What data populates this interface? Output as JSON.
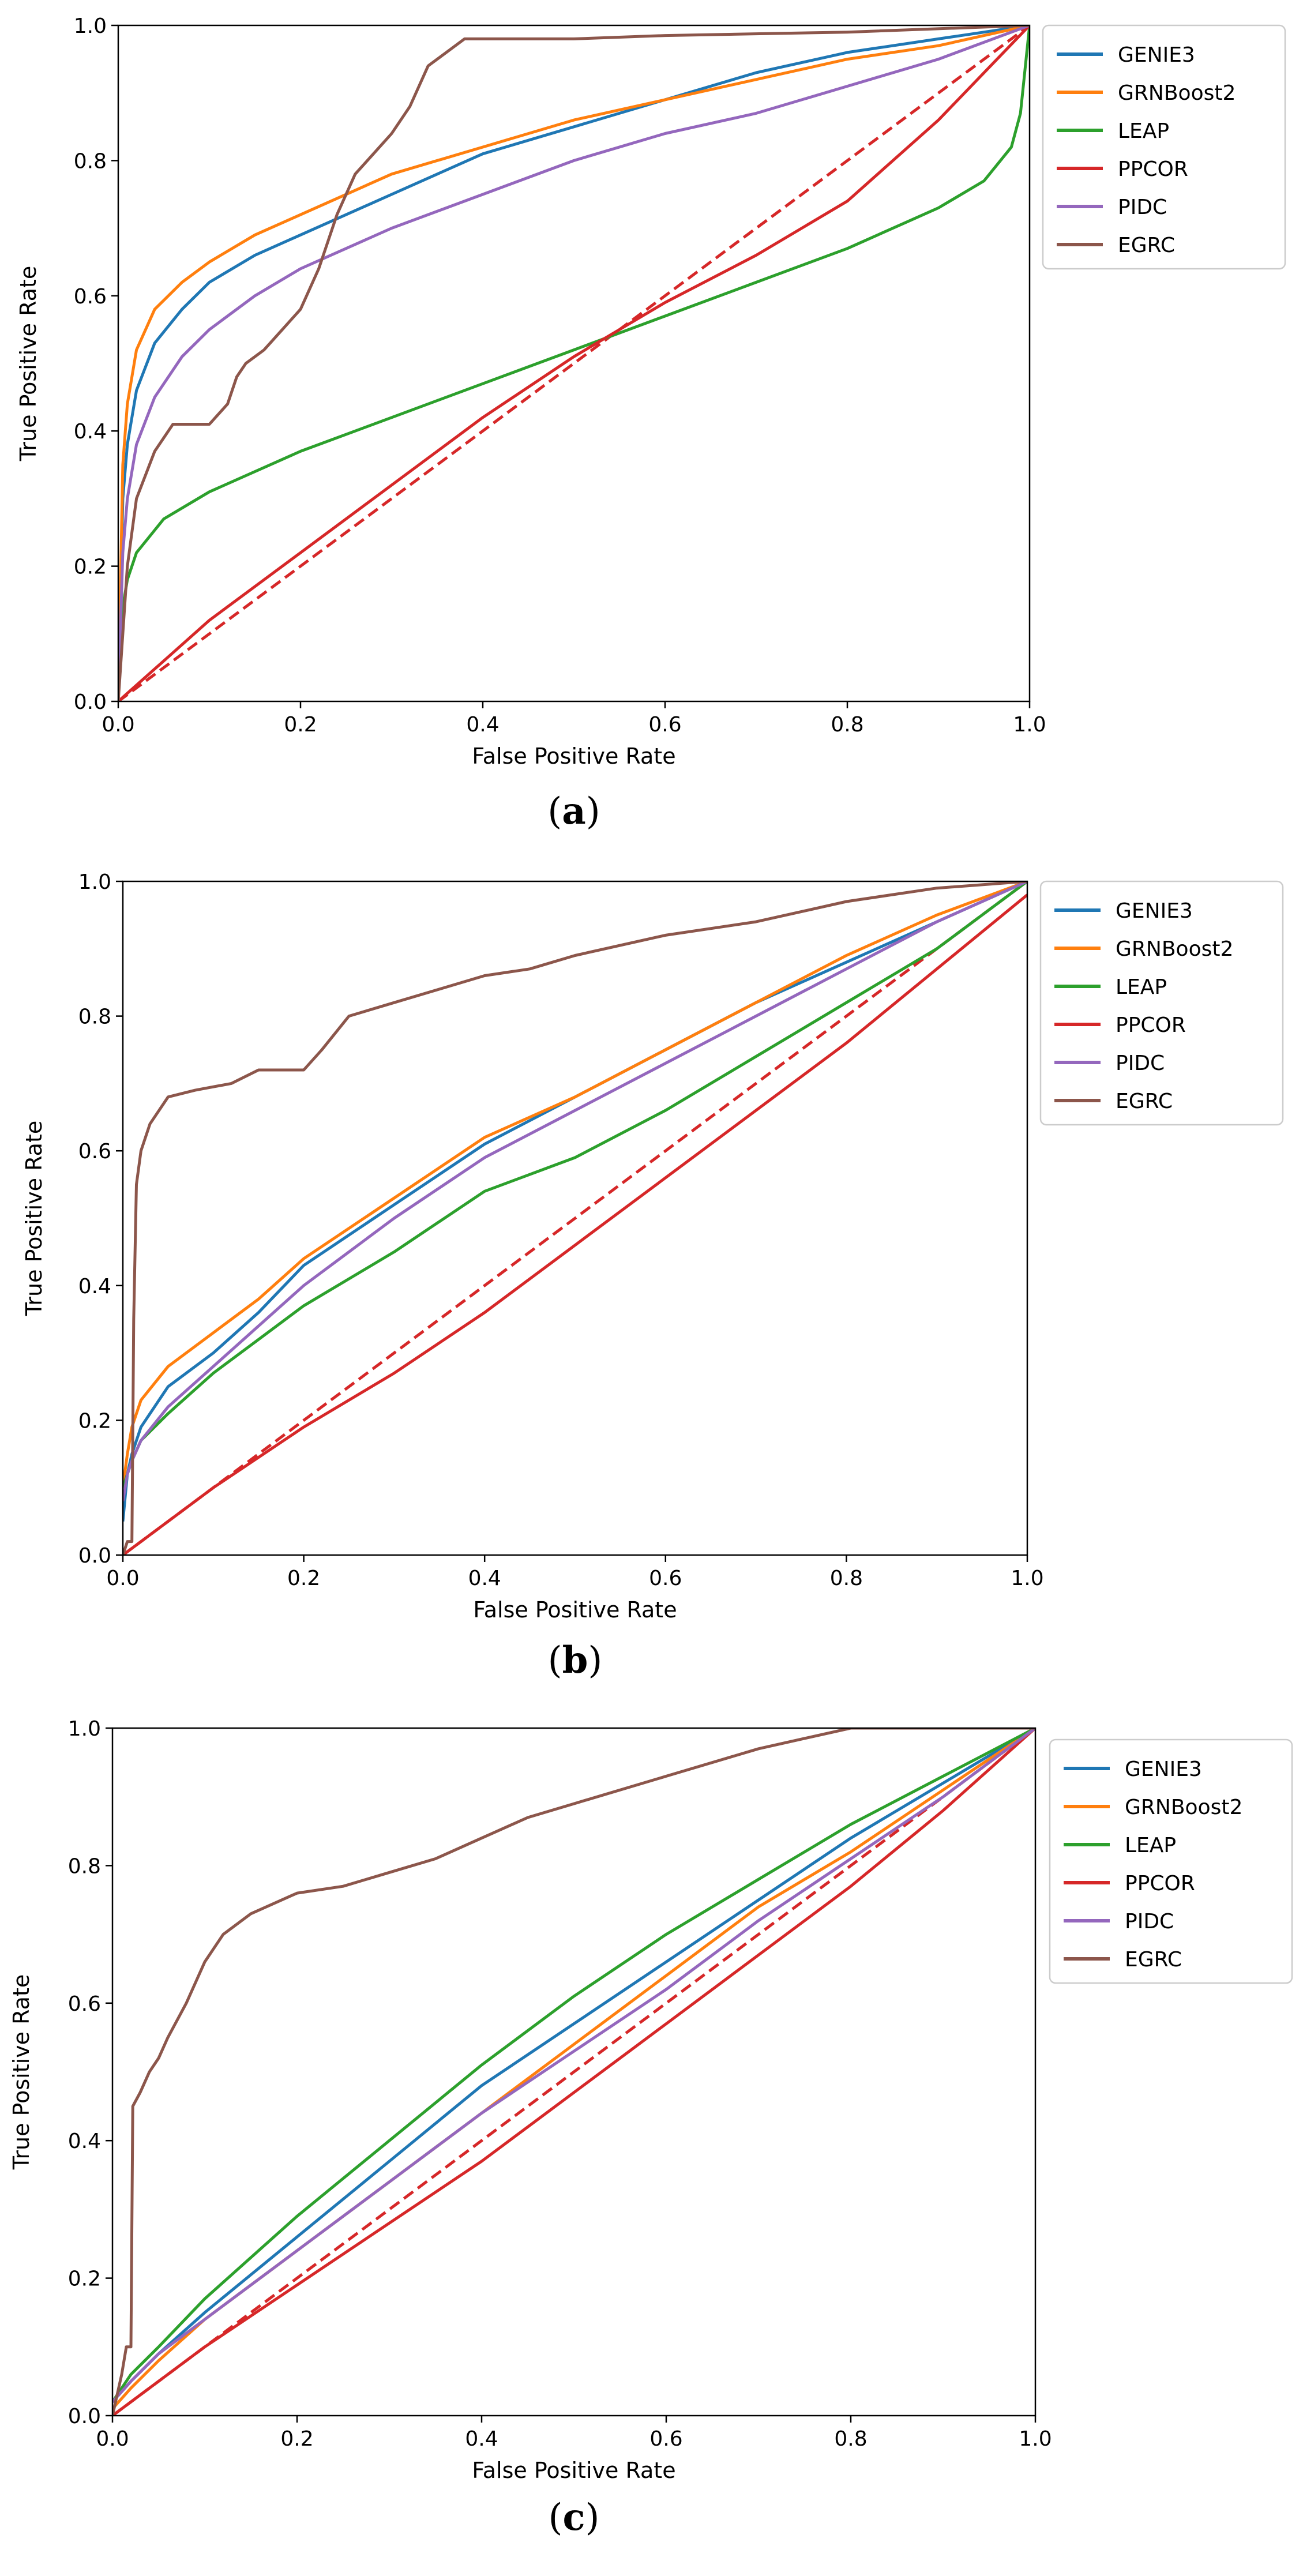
{
  "panels": [
    {
      "caption_open": "(",
      "caption_letter": "a",
      "caption_close": ")"
    },
    {
      "caption_open": "(",
      "caption_letter": "b",
      "caption_close": ")"
    },
    {
      "caption_open": "(",
      "caption_letter": "c",
      "caption_close": ")"
    }
  ],
  "chart_data": [
    {
      "type": "line",
      "title": "",
      "xlabel": "False Positive Rate",
      "ylabel": "True Positive Rate",
      "xlim": [
        0,
        1
      ],
      "ylim": [
        0,
        1
      ],
      "xticks": [
        "0.0",
        "0.2",
        "0.4",
        "0.6",
        "0.8",
        "1.0"
      ],
      "yticks": [
        "0.0",
        "0.2",
        "0.4",
        "0.6",
        "0.8",
        "1.0"
      ],
      "grid": false,
      "legend": "outside-upper-right",
      "reference_line": {
        "style": "dashed",
        "color": "#d62728",
        "x": [
          0,
          1
        ],
        "y": [
          0,
          1
        ]
      },
      "series": [
        {
          "name": "GENIE3",
          "color": "#1f77b4",
          "x": [
            0,
            0.005,
            0.01,
            0.02,
            0.04,
            0.07,
            0.1,
            0.15,
            0.2,
            0.3,
            0.4,
            0.5,
            0.6,
            0.7,
            0.8,
            0.9,
            1.0
          ],
          "y": [
            0,
            0.3,
            0.38,
            0.46,
            0.53,
            0.58,
            0.62,
            0.66,
            0.69,
            0.75,
            0.81,
            0.85,
            0.89,
            0.93,
            0.96,
            0.98,
            1.0
          ]
        },
        {
          "name": "GRNBoost2",
          "color": "#ff7f0e",
          "x": [
            0,
            0.005,
            0.01,
            0.02,
            0.04,
            0.07,
            0.1,
            0.15,
            0.2,
            0.3,
            0.4,
            0.5,
            0.6,
            0.7,
            0.8,
            0.9,
            1.0
          ],
          "y": [
            0,
            0.35,
            0.44,
            0.52,
            0.58,
            0.62,
            0.65,
            0.69,
            0.72,
            0.78,
            0.82,
            0.86,
            0.89,
            0.92,
            0.95,
            0.97,
            1.0
          ]
        },
        {
          "name": "LEAP",
          "color": "#2ca02c",
          "x": [
            0,
            0.005,
            0.01,
            0.02,
            0.05,
            0.1,
            0.2,
            0.3,
            0.4,
            0.5,
            0.6,
            0.7,
            0.8,
            0.9,
            0.95,
            0.98,
            0.99,
            1.0
          ],
          "y": [
            0,
            0.14,
            0.18,
            0.22,
            0.27,
            0.31,
            0.37,
            0.42,
            0.47,
            0.52,
            0.57,
            0.62,
            0.67,
            0.73,
            0.77,
            0.82,
            0.87,
            1.0
          ]
        },
        {
          "name": "PPCOR",
          "color": "#d62728",
          "x": [
            0,
            0.05,
            0.1,
            0.2,
            0.3,
            0.4,
            0.5,
            0.55,
            0.6,
            0.7,
            0.8,
            0.9,
            1.0
          ],
          "y": [
            0,
            0.06,
            0.12,
            0.22,
            0.32,
            0.42,
            0.51,
            0.55,
            0.59,
            0.66,
            0.74,
            0.86,
            1.0
          ]
        },
        {
          "name": "PIDC",
          "color": "#9467bd",
          "x": [
            0,
            0.005,
            0.01,
            0.02,
            0.04,
            0.07,
            0.1,
            0.15,
            0.2,
            0.3,
            0.4,
            0.5,
            0.6,
            0.7,
            0.8,
            0.9,
            1.0
          ],
          "y": [
            0,
            0.22,
            0.3,
            0.38,
            0.45,
            0.51,
            0.55,
            0.6,
            0.64,
            0.7,
            0.75,
            0.8,
            0.84,
            0.87,
            0.91,
            0.95,
            1.0
          ]
        },
        {
          "name": "EGRC",
          "color": "#8c564b",
          "x": [
            0,
            0.01,
            0.02,
            0.04,
            0.06,
            0.1,
            0.12,
            0.13,
            0.14,
            0.16,
            0.18,
            0.2,
            0.22,
            0.24,
            0.26,
            0.28,
            0.3,
            0.32,
            0.34,
            0.36,
            0.38,
            0.4,
            0.5,
            0.6,
            0.8,
            1.0
          ],
          "y": [
            0,
            0.2,
            0.3,
            0.37,
            0.41,
            0.41,
            0.44,
            0.48,
            0.5,
            0.52,
            0.55,
            0.58,
            0.64,
            0.72,
            0.78,
            0.81,
            0.84,
            0.88,
            0.94,
            0.96,
            0.98,
            0.98,
            0.98,
            0.985,
            0.99,
            1.0
          ]
        }
      ]
    },
    {
      "type": "line",
      "title": "",
      "xlabel": "False Positive Rate",
      "ylabel": "True Positive Rate",
      "xlim": [
        0,
        1
      ],
      "ylim": [
        0,
        1
      ],
      "xticks": [
        "0.0",
        "0.2",
        "0.4",
        "0.6",
        "0.8",
        "1.0"
      ],
      "yticks": [
        "0.0",
        "0.2",
        "0.4",
        "0.6",
        "0.8",
        "1.0"
      ],
      "grid": false,
      "legend": "outside-upper-right",
      "reference_line": {
        "style": "dashed",
        "color": "#d62728",
        "x": [
          0,
          1
        ],
        "y": [
          0,
          1
        ]
      },
      "series": [
        {
          "name": "GENIE3",
          "color": "#1f77b4",
          "x": [
            0,
            0.005,
            0.01,
            0.02,
            0.05,
            0.1,
            0.15,
            0.2,
            0.3,
            0.4,
            0.5,
            0.6,
            0.7,
            0.8,
            0.9,
            1.0
          ],
          "y": [
            0.05,
            0.12,
            0.15,
            0.19,
            0.25,
            0.3,
            0.36,
            0.43,
            0.52,
            0.61,
            0.68,
            0.75,
            0.82,
            0.88,
            0.94,
            1.0
          ]
        },
        {
          "name": "GRNBoost2",
          "color": "#ff7f0e",
          "x": [
            0,
            0.005,
            0.01,
            0.02,
            0.05,
            0.1,
            0.15,
            0.2,
            0.3,
            0.4,
            0.5,
            0.6,
            0.7,
            0.8,
            0.9,
            1.0
          ],
          "y": [
            0.1,
            0.15,
            0.19,
            0.23,
            0.28,
            0.33,
            0.38,
            0.44,
            0.53,
            0.62,
            0.68,
            0.75,
            0.82,
            0.89,
            0.95,
            1.0
          ]
        },
        {
          "name": "LEAP",
          "color": "#2ca02c",
          "x": [
            0,
            0.005,
            0.01,
            0.02,
            0.05,
            0.1,
            0.15,
            0.2,
            0.3,
            0.4,
            0.5,
            0.6,
            0.7,
            0.8,
            0.9,
            1.0
          ],
          "y": [
            0.1,
            0.12,
            0.14,
            0.17,
            0.21,
            0.27,
            0.32,
            0.37,
            0.45,
            0.54,
            0.59,
            0.66,
            0.74,
            0.82,
            0.9,
            1.0
          ]
        },
        {
          "name": "PPCOR",
          "color": "#d62728",
          "x": [
            0,
            0.05,
            0.1,
            0.2,
            0.3,
            0.4,
            0.5,
            0.6,
            0.7,
            0.8,
            0.9,
            1.0
          ],
          "y": [
            0,
            0.05,
            0.1,
            0.19,
            0.27,
            0.36,
            0.46,
            0.56,
            0.66,
            0.76,
            0.87,
            0.98
          ]
        },
        {
          "name": "PIDC",
          "color": "#9467bd",
          "x": [
            0,
            0.005,
            0.01,
            0.02,
            0.05,
            0.1,
            0.15,
            0.2,
            0.3,
            0.4,
            0.5,
            0.6,
            0.7,
            0.8,
            0.9,
            1.0
          ],
          "y": [
            0.08,
            0.12,
            0.14,
            0.17,
            0.22,
            0.28,
            0.34,
            0.4,
            0.5,
            0.59,
            0.66,
            0.73,
            0.8,
            0.87,
            0.94,
            1.0
          ]
        },
        {
          "name": "EGRC",
          "color": "#8c564b",
          "x": [
            0,
            0.005,
            0.01,
            0.012,
            0.015,
            0.02,
            0.03,
            0.05,
            0.08,
            0.12,
            0.15,
            0.2,
            0.22,
            0.25,
            0.3,
            0.35,
            0.4,
            0.45,
            0.5,
            0.6,
            0.7,
            0.8,
            0.9,
            1.0
          ],
          "y": [
            0,
            0.02,
            0.02,
            0.35,
            0.55,
            0.6,
            0.64,
            0.68,
            0.69,
            0.7,
            0.72,
            0.72,
            0.75,
            0.8,
            0.82,
            0.84,
            0.86,
            0.87,
            0.89,
            0.92,
            0.94,
            0.97,
            0.99,
            1.0
          ]
        }
      ]
    },
    {
      "type": "line",
      "title": "",
      "xlabel": "False Positive Rate",
      "ylabel": "True Positive Rate",
      "xlim": [
        0,
        1
      ],
      "ylim": [
        0,
        1
      ],
      "xticks": [
        "0.0",
        "0.2",
        "0.4",
        "0.6",
        "0.8",
        "1.0"
      ],
      "yticks": [
        "0.0",
        "0.2",
        "0.4",
        "0.6",
        "0.8",
        "1.0"
      ],
      "grid": false,
      "legend": "outside-upper-right",
      "reference_line": {
        "style": "dashed",
        "color": "#d62728",
        "x": [
          0,
          1
        ],
        "y": [
          0,
          1
        ]
      },
      "series": [
        {
          "name": "GENIE3",
          "color": "#1f77b4",
          "x": [
            0,
            0.02,
            0.05,
            0.1,
            0.2,
            0.3,
            0.4,
            0.5,
            0.6,
            0.7,
            0.8,
            0.9,
            1.0
          ],
          "y": [
            0.02,
            0.05,
            0.09,
            0.15,
            0.26,
            0.37,
            0.48,
            0.57,
            0.66,
            0.75,
            0.84,
            0.92,
            1.0
          ]
        },
        {
          "name": "GRNBoost2",
          "color": "#ff7f0e",
          "x": [
            0,
            0.02,
            0.05,
            0.1,
            0.2,
            0.3,
            0.4,
            0.5,
            0.6,
            0.7,
            0.8,
            0.9,
            1.0
          ],
          "y": [
            0.01,
            0.04,
            0.08,
            0.14,
            0.24,
            0.34,
            0.44,
            0.54,
            0.64,
            0.74,
            0.82,
            0.91,
            1.0
          ]
        },
        {
          "name": "LEAP",
          "color": "#2ca02c",
          "x": [
            0,
            0.02,
            0.05,
            0.1,
            0.2,
            0.3,
            0.4,
            0.5,
            0.6,
            0.7,
            0.8,
            0.9,
            1.0
          ],
          "y": [
            0.02,
            0.06,
            0.1,
            0.17,
            0.29,
            0.4,
            0.51,
            0.61,
            0.7,
            0.78,
            0.86,
            0.93,
            1.0
          ]
        },
        {
          "name": "PPCOR",
          "color": "#d62728",
          "x": [
            0,
            0.05,
            0.1,
            0.2,
            0.3,
            0.4,
            0.5,
            0.6,
            0.7,
            0.8,
            0.9,
            1.0
          ],
          "y": [
            0,
            0.05,
            0.1,
            0.19,
            0.28,
            0.37,
            0.47,
            0.57,
            0.67,
            0.77,
            0.88,
            1.0
          ]
        },
        {
          "name": "PIDC",
          "color": "#9467bd",
          "x": [
            0,
            0.02,
            0.05,
            0.1,
            0.2,
            0.3,
            0.4,
            0.5,
            0.6,
            0.7,
            0.8,
            0.9,
            1.0
          ],
          "y": [
            0.02,
            0.05,
            0.09,
            0.14,
            0.24,
            0.34,
            0.44,
            0.53,
            0.62,
            0.72,
            0.81,
            0.9,
            1.0
          ]
        },
        {
          "name": "EGRC",
          "color": "#8c564b",
          "x": [
            0,
            0.01,
            0.015,
            0.02,
            0.022,
            0.03,
            0.04,
            0.05,
            0.06,
            0.08,
            0.1,
            0.12,
            0.15,
            0.2,
            0.25,
            0.3,
            0.35,
            0.4,
            0.45,
            0.5,
            0.6,
            0.7,
            0.8,
            0.9,
            1.0
          ],
          "y": [
            0,
            0.06,
            0.1,
            0.1,
            0.45,
            0.47,
            0.5,
            0.52,
            0.55,
            0.6,
            0.66,
            0.7,
            0.73,
            0.76,
            0.77,
            0.79,
            0.81,
            0.84,
            0.87,
            0.89,
            0.93,
            0.97,
            1.0,
            1.0,
            1.0
          ]
        }
      ]
    }
  ]
}
